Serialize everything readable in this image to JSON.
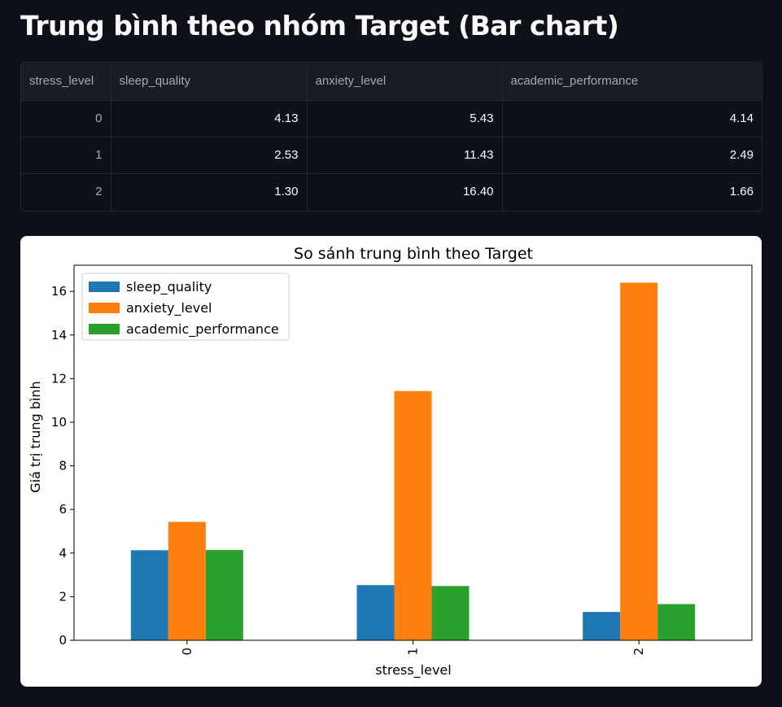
{
  "page": {
    "title": "Trung bình theo nhóm Target (Bar chart)"
  },
  "table": {
    "columns": [
      "stress_level",
      "sleep_quality",
      "anxiety_level",
      "academic_performance"
    ],
    "rows": [
      [
        "0",
        "4.13",
        "5.43",
        "4.14"
      ],
      [
        "1",
        "2.53",
        "11.43",
        "2.49"
      ],
      [
        "2",
        "1.30",
        "16.40",
        "1.66"
      ]
    ]
  },
  "chart_data": {
    "type": "bar",
    "title": "So sánh trung bình theo Target",
    "xlabel": "stress_level",
    "ylabel": "Giá trị trung bình",
    "categories": [
      "0",
      "1",
      "2"
    ],
    "series": [
      {
        "name": "sleep_quality",
        "values": [
          4.13,
          2.53,
          1.3
        ],
        "color": "#1f77b4"
      },
      {
        "name": "anxiety_level",
        "values": [
          5.43,
          11.43,
          16.4
        ],
        "color": "#ff7f0e"
      },
      {
        "name": "academic_performance",
        "values": [
          4.14,
          2.49,
          1.66
        ],
        "color": "#2ca02c"
      }
    ],
    "ylim": [
      0,
      17.2
    ],
    "yticks": [
      0,
      2,
      4,
      6,
      8,
      10,
      12,
      14,
      16
    ],
    "legend": "top-left",
    "grid": false
  }
}
